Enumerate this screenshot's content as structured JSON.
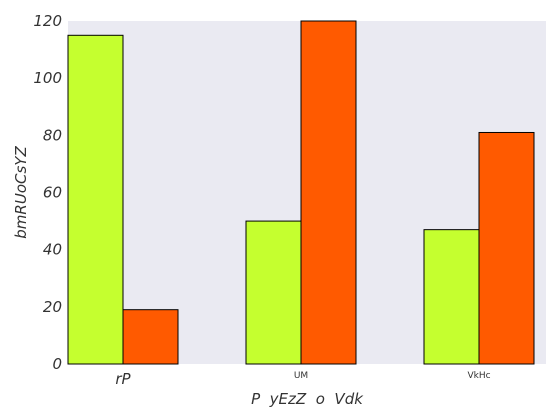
{
  "chart_data": {
    "type": "bar",
    "title": "",
    "xlabel": "P  yEzZ  o  Vdk",
    "ylabel": "bmRUoCsYZ",
    "categories": [
      "rP",
      "UM",
      "VkHc"
    ],
    "category_label_styles": [
      "large-italic",
      "small",
      "small"
    ],
    "series": [
      {
        "values": [
          115,
          50,
          47
        ],
        "color": "#c5ff2f"
      },
      {
        "values": [
          19,
          120,
          81
        ],
        "color": "#ff5a00"
      }
    ],
    "ylim": [
      0,
      120
    ],
    "yticks": [
      0,
      20,
      40,
      60,
      80,
      100,
      120
    ],
    "grid": false,
    "legend": "none",
    "plot_background": "#eaeaf2",
    "bar_edge_color": "#000000"
  }
}
